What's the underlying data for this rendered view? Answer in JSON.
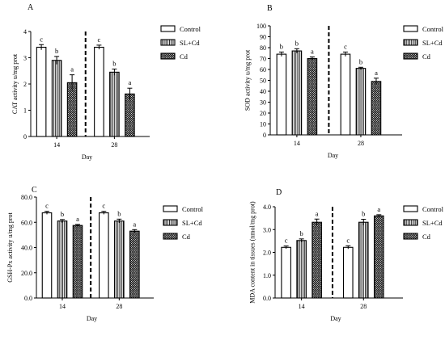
{
  "colors": {
    "ink": "#000000",
    "control_fill": "#ffffff"
  },
  "legend_entries": [
    {
      "key": "control",
      "label": "Control",
      "pattern": "solid-white"
    },
    {
      "key": "sl_cd",
      "label": "SL+Cd",
      "pattern": "vertical-lines"
    },
    {
      "key": "cd",
      "label": "Cd",
      "pattern": "crosshatch"
    }
  ],
  "chart_data": [
    {
      "panel": "A",
      "type": "bar",
      "xlabel": "Day",
      "ylabel": "CAT activity u/mg prot",
      "categories": [
        "14",
        "28"
      ],
      "ylim": [
        0,
        4
      ],
      "yticks": [
        0,
        1,
        2,
        3,
        4
      ],
      "ytick_labels": [
        "0",
        "1",
        "2",
        "3",
        "4"
      ],
      "grid": false,
      "legend_position": "right",
      "divider": "dashed vertical line between days",
      "series": [
        {
          "name": "Control",
          "values": [
            3.4,
            3.4
          ],
          "errors": [
            0.1,
            0.08
          ],
          "sig": [
            "c",
            "c"
          ]
        },
        {
          "name": "SL+Cd",
          "values": [
            2.9,
            2.45
          ],
          "errors": [
            0.15,
            0.12
          ],
          "sig": [
            "b",
            "b"
          ]
        },
        {
          "name": "Cd",
          "values": [
            2.05,
            1.62
          ],
          "errors": [
            0.3,
            0.22
          ],
          "sig": [
            "a",
            "a"
          ]
        }
      ]
    },
    {
      "panel": "B",
      "type": "bar",
      "xlabel": "Day",
      "ylabel": "SOD activity u/mg prot",
      "categories": [
        "14",
        "28"
      ],
      "ylim": [
        0,
        100
      ],
      "yticks": [
        0,
        10,
        20,
        30,
        40,
        50,
        60,
        70,
        80,
        90,
        100
      ],
      "ytick_labels": [
        "0",
        "10",
        "20",
        "30",
        "40",
        "50",
        "60",
        "70",
        "80",
        "90",
        "100"
      ],
      "grid": false,
      "legend_position": "right",
      "divider": "dashed vertical line between days",
      "series": [
        {
          "name": "Control",
          "values": [
            74,
            74
          ],
          "errors": [
            2,
            2
          ],
          "sig": [
            "b",
            "c"
          ]
        },
        {
          "name": "SL+Cd",
          "values": [
            77,
            61
          ],
          "errors": [
            2,
            1
          ],
          "sig": [
            "b",
            "b"
          ]
        },
        {
          "name": "Cd",
          "values": [
            70,
            49
          ],
          "errors": [
            1.5,
            3
          ],
          "sig": [
            "a",
            "a"
          ]
        }
      ]
    },
    {
      "panel": "C",
      "type": "bar",
      "xlabel": "Day",
      "ylabel": "GSH-Px activity u/mg prot",
      "categories": [
        "14",
        "28"
      ],
      "ylim": [
        0,
        80
      ],
      "yticks": [
        0,
        20,
        40,
        60,
        80
      ],
      "ytick_labels": [
        "0.0",
        "20.0",
        "40.0",
        "60.0",
        "80.0"
      ],
      "grid": false,
      "legend_position": "right",
      "divider": "dashed vertical line between days",
      "series": [
        {
          "name": "Control",
          "values": [
            67.5,
            67.5
          ],
          "errors": [
            1.2,
            1.2
          ],
          "sig": [
            "c",
            "c"
          ]
        },
        {
          "name": "SL+Cd",
          "values": [
            61,
            61
          ],
          "errors": [
            1.2,
            1.5
          ],
          "sig": [
            "b",
            "b"
          ]
        },
        {
          "name": "Cd",
          "values": [
            57.5,
            53
          ],
          "errors": [
            0.8,
            1.2
          ],
          "sig": [
            "a",
            "a"
          ]
        }
      ]
    },
    {
      "panel": "D",
      "type": "bar",
      "xlabel": "Day",
      "ylabel": "MDA content in tissues (nmol/mg prot)",
      "categories": [
        "14",
        "28"
      ],
      "ylim": [
        0,
        4
      ],
      "yticks": [
        0,
        1,
        2,
        3,
        4
      ],
      "ytick_labels": [
        "0.0",
        "1.0",
        "2.0",
        "3.0",
        "4.0"
      ],
      "grid": false,
      "legend_position": "right",
      "divider": "dashed vertical line between days",
      "series": [
        {
          "name": "Control",
          "values": [
            2.22,
            2.22
          ],
          "errors": [
            0.06,
            0.07
          ],
          "sig": [
            "c",
            "c"
          ]
        },
        {
          "name": "SL+Cd",
          "values": [
            2.52,
            3.32
          ],
          "errors": [
            0.07,
            0.13
          ],
          "sig": [
            "b",
            "b"
          ]
        },
        {
          "name": "Cd",
          "values": [
            3.32,
            3.6
          ],
          "errors": [
            0.14,
            0.05
          ],
          "sig": [
            "a",
            "a"
          ]
        }
      ]
    }
  ]
}
